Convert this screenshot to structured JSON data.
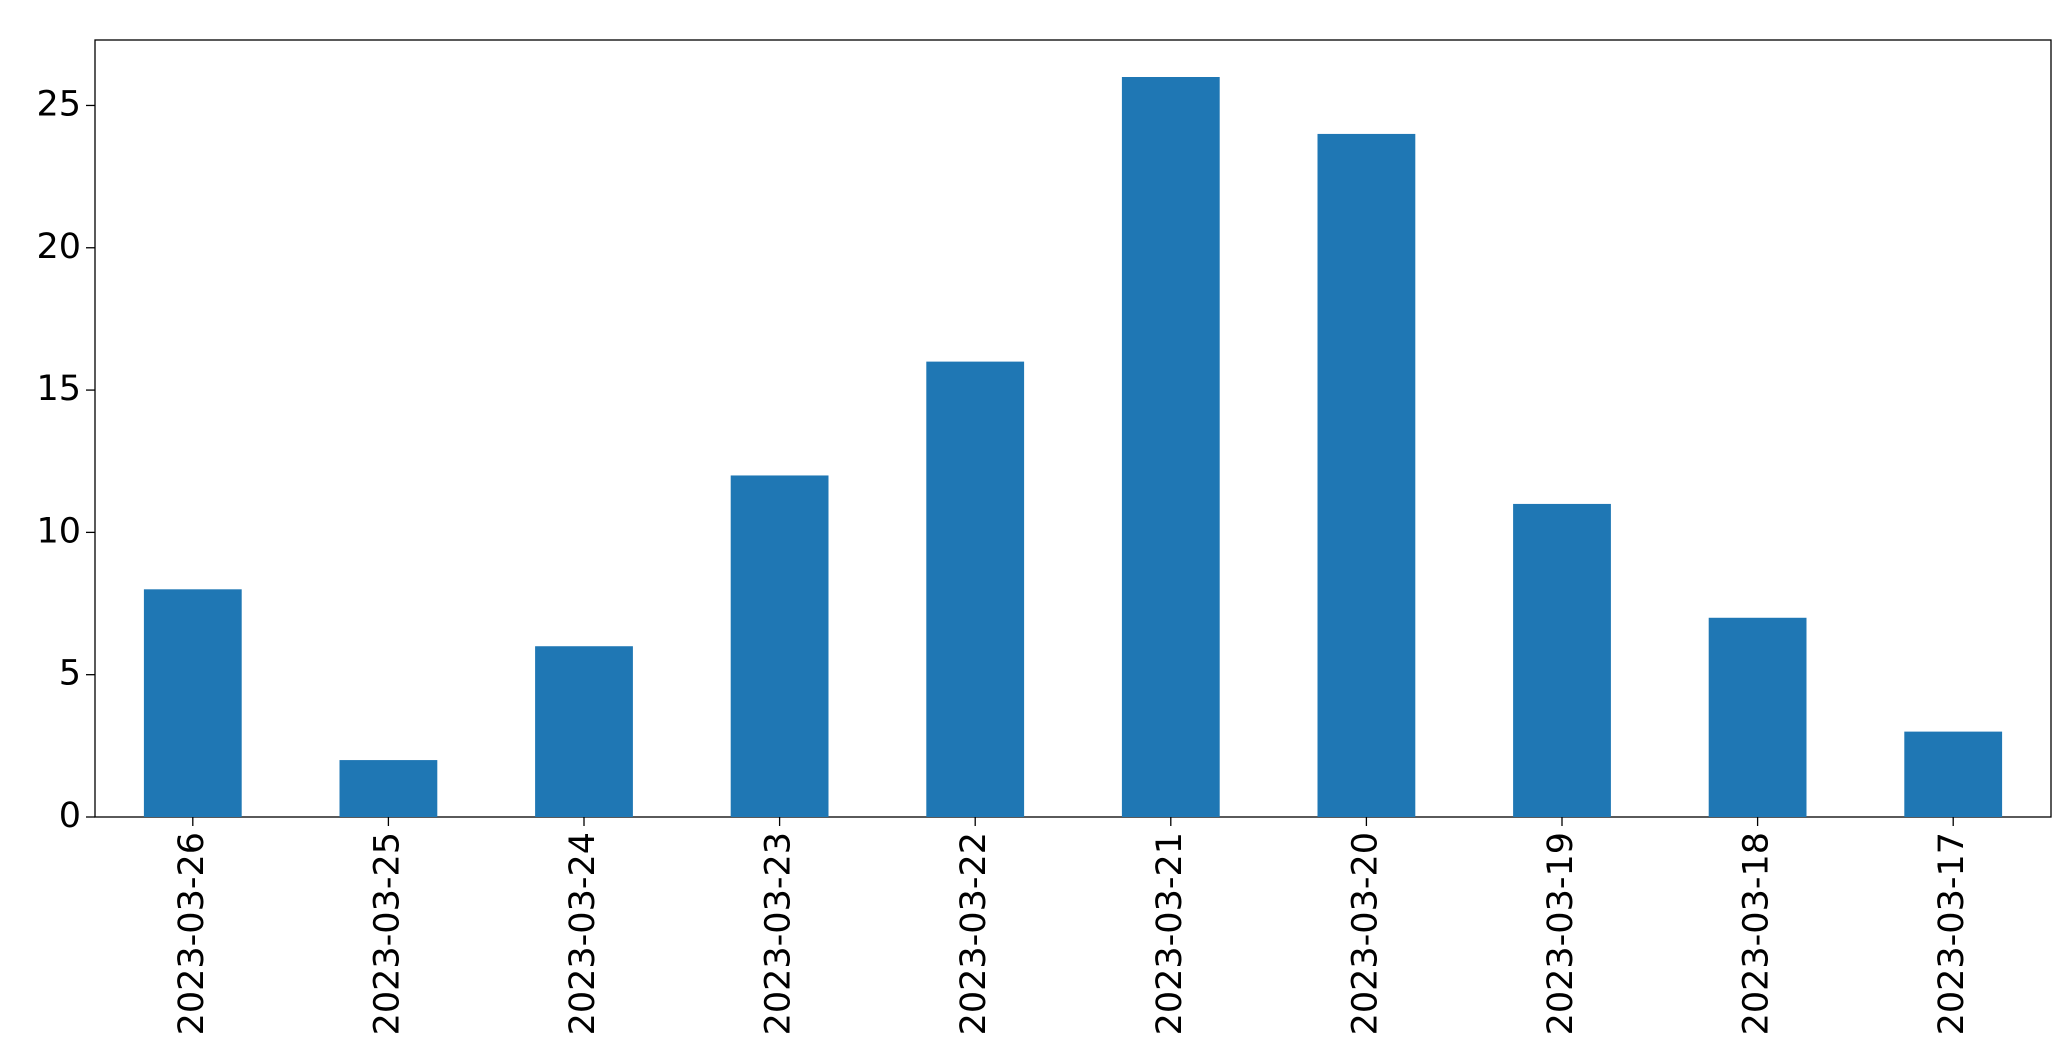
{
  "chart_data": {
    "type": "bar",
    "categories": [
      "2023-03-26",
      "2023-03-25",
      "2023-03-24",
      "2023-03-23",
      "2023-03-22",
      "2023-03-21",
      "2023-03-20",
      "2023-03-19",
      "2023-03-18",
      "2023-03-17"
    ],
    "values": [
      8,
      2,
      6,
      12,
      16,
      26,
      24,
      11,
      7,
      3
    ],
    "color": "#1f77b4",
    "ylim": [
      0,
      27.3
    ],
    "yticks": [
      0,
      5,
      10,
      15,
      20,
      25
    ]
  }
}
